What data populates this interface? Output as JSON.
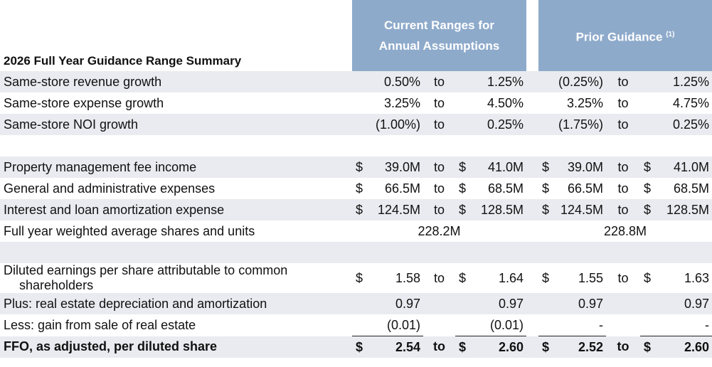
{
  "header": {
    "title": "2026 Full Year Guidance Range Summary",
    "current": "Current Ranges for Annual Assumptions",
    "prior": "Prior Guidance",
    "prior_note": "(1)"
  },
  "rows": [
    {
      "label": "Same-store revenue growth",
      "current": {
        "low": "0.50%",
        "to": "to",
        "high": "1.25%"
      },
      "prior": {
        "low": "(0.25%)",
        "to": "to",
        "high": "1.25%"
      }
    },
    {
      "label": "Same-store expense growth",
      "current": {
        "low": "3.25%",
        "to": "to",
        "high": "4.50%"
      },
      "prior": {
        "low": "3.25%",
        "to": "to",
        "high": "4.75%"
      }
    },
    {
      "label": "Same-store NOI growth",
      "current": {
        "low": "(1.00%)",
        "to": "to",
        "high": "0.25%"
      },
      "prior": {
        "low": "(1.75%)",
        "to": "to",
        "high": "0.25%"
      }
    },
    {
      "label": "Property management fee income",
      "current": {
        "low_currency": "$",
        "low": "39.0M",
        "to": "to",
        "high_currency": "$",
        "high": "41.0M"
      },
      "prior": {
        "low_currency": "$",
        "low": "39.0M",
        "to": "to",
        "high_currency": "$",
        "high": "41.0M"
      }
    },
    {
      "label": "General and administrative expenses",
      "current": {
        "low_currency": "$",
        "low": "66.5M",
        "to": "to",
        "high_currency": "$",
        "high": "68.5M"
      },
      "prior": {
        "low_currency": "$",
        "low": "66.5M",
        "to": "to",
        "high_currency": "$",
        "high": "68.5M"
      }
    },
    {
      "label": "Interest and loan amortization expense",
      "current": {
        "low_currency": "$",
        "low": "124.5M",
        "to": "to",
        "high_currency": "$",
        "high": "128.5M"
      },
      "prior": {
        "low_currency": "$",
        "low": "124.5M",
        "to": "to",
        "high_currency": "$",
        "high": "128.5M"
      }
    },
    {
      "label": "Full year weighted average shares and units",
      "current": {
        "value": "228.2M"
      },
      "prior": {
        "value": "228.8M"
      }
    },
    {
      "label_lines": [
        "Diluted earnings per share attributable to common",
        "shareholders"
      ],
      "current": {
        "low_currency": "$",
        "low": "1.58",
        "to": "to",
        "high_currency": "$",
        "high": "1.64"
      },
      "prior": {
        "low_currency": "$",
        "low": "1.55",
        "to": "to",
        "high_currency": "$",
        "high": "1.63"
      }
    },
    {
      "label": "Plus: real estate depreciation and amortization",
      "current": {
        "low": "0.97",
        "high": "0.97"
      },
      "prior": {
        "low": "0.97",
        "high": "0.97"
      }
    },
    {
      "label": "Less: gain from sale of real estate",
      "current": {
        "low": "(0.01)",
        "high": "(0.01)"
      },
      "prior": {
        "low": "-",
        "high": "-"
      }
    },
    {
      "label": "FFO, as adjusted, per diluted share",
      "current": {
        "low_currency": "$",
        "low": "2.54",
        "to": "to",
        "high_currency": "$",
        "high": "2.60"
      },
      "prior": {
        "low_currency": "$",
        "low": "2.52",
        "to": "to",
        "high_currency": "$",
        "high": "2.60"
      }
    }
  ]
}
